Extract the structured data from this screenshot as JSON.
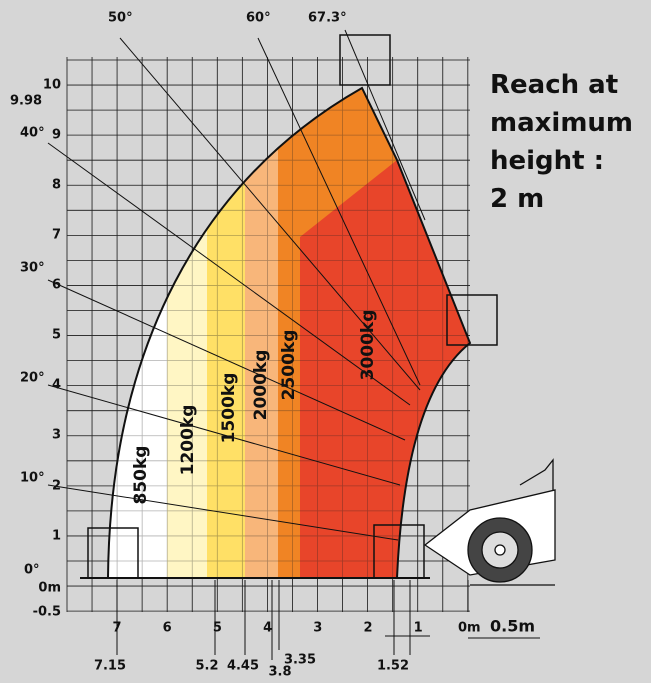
{
  "angle_labels_top": [
    "50°",
    "60°",
    "67.3°"
  ],
  "angle_labels_left": [
    "40°",
    "30°",
    "20°",
    "10°",
    "0°"
  ],
  "height_axis": {
    "max_note": "9.98",
    "ticks": [
      "10",
      "9",
      "8",
      "7",
      "6",
      "5",
      "4",
      "3",
      "2",
      "1",
      "0m",
      "-0.5"
    ]
  },
  "reach_axis": {
    "ticks": [
      "7",
      "6",
      "5",
      "4",
      "3",
      "2",
      "1"
    ],
    "scale_zero": "0m",
    "scale_step": "0.5m"
  },
  "reach_marks": [
    "7.15",
    "5.2",
    "4.45",
    "3.8",
    "3.35",
    "1.52"
  ],
  "load_zones": [
    "850kg",
    "1200kg",
    "1500kg",
    "2000kg",
    "2500kg",
    "3000kg"
  ],
  "note": [
    "Reach at",
    "maximum",
    "height :",
    "2 m"
  ]
}
